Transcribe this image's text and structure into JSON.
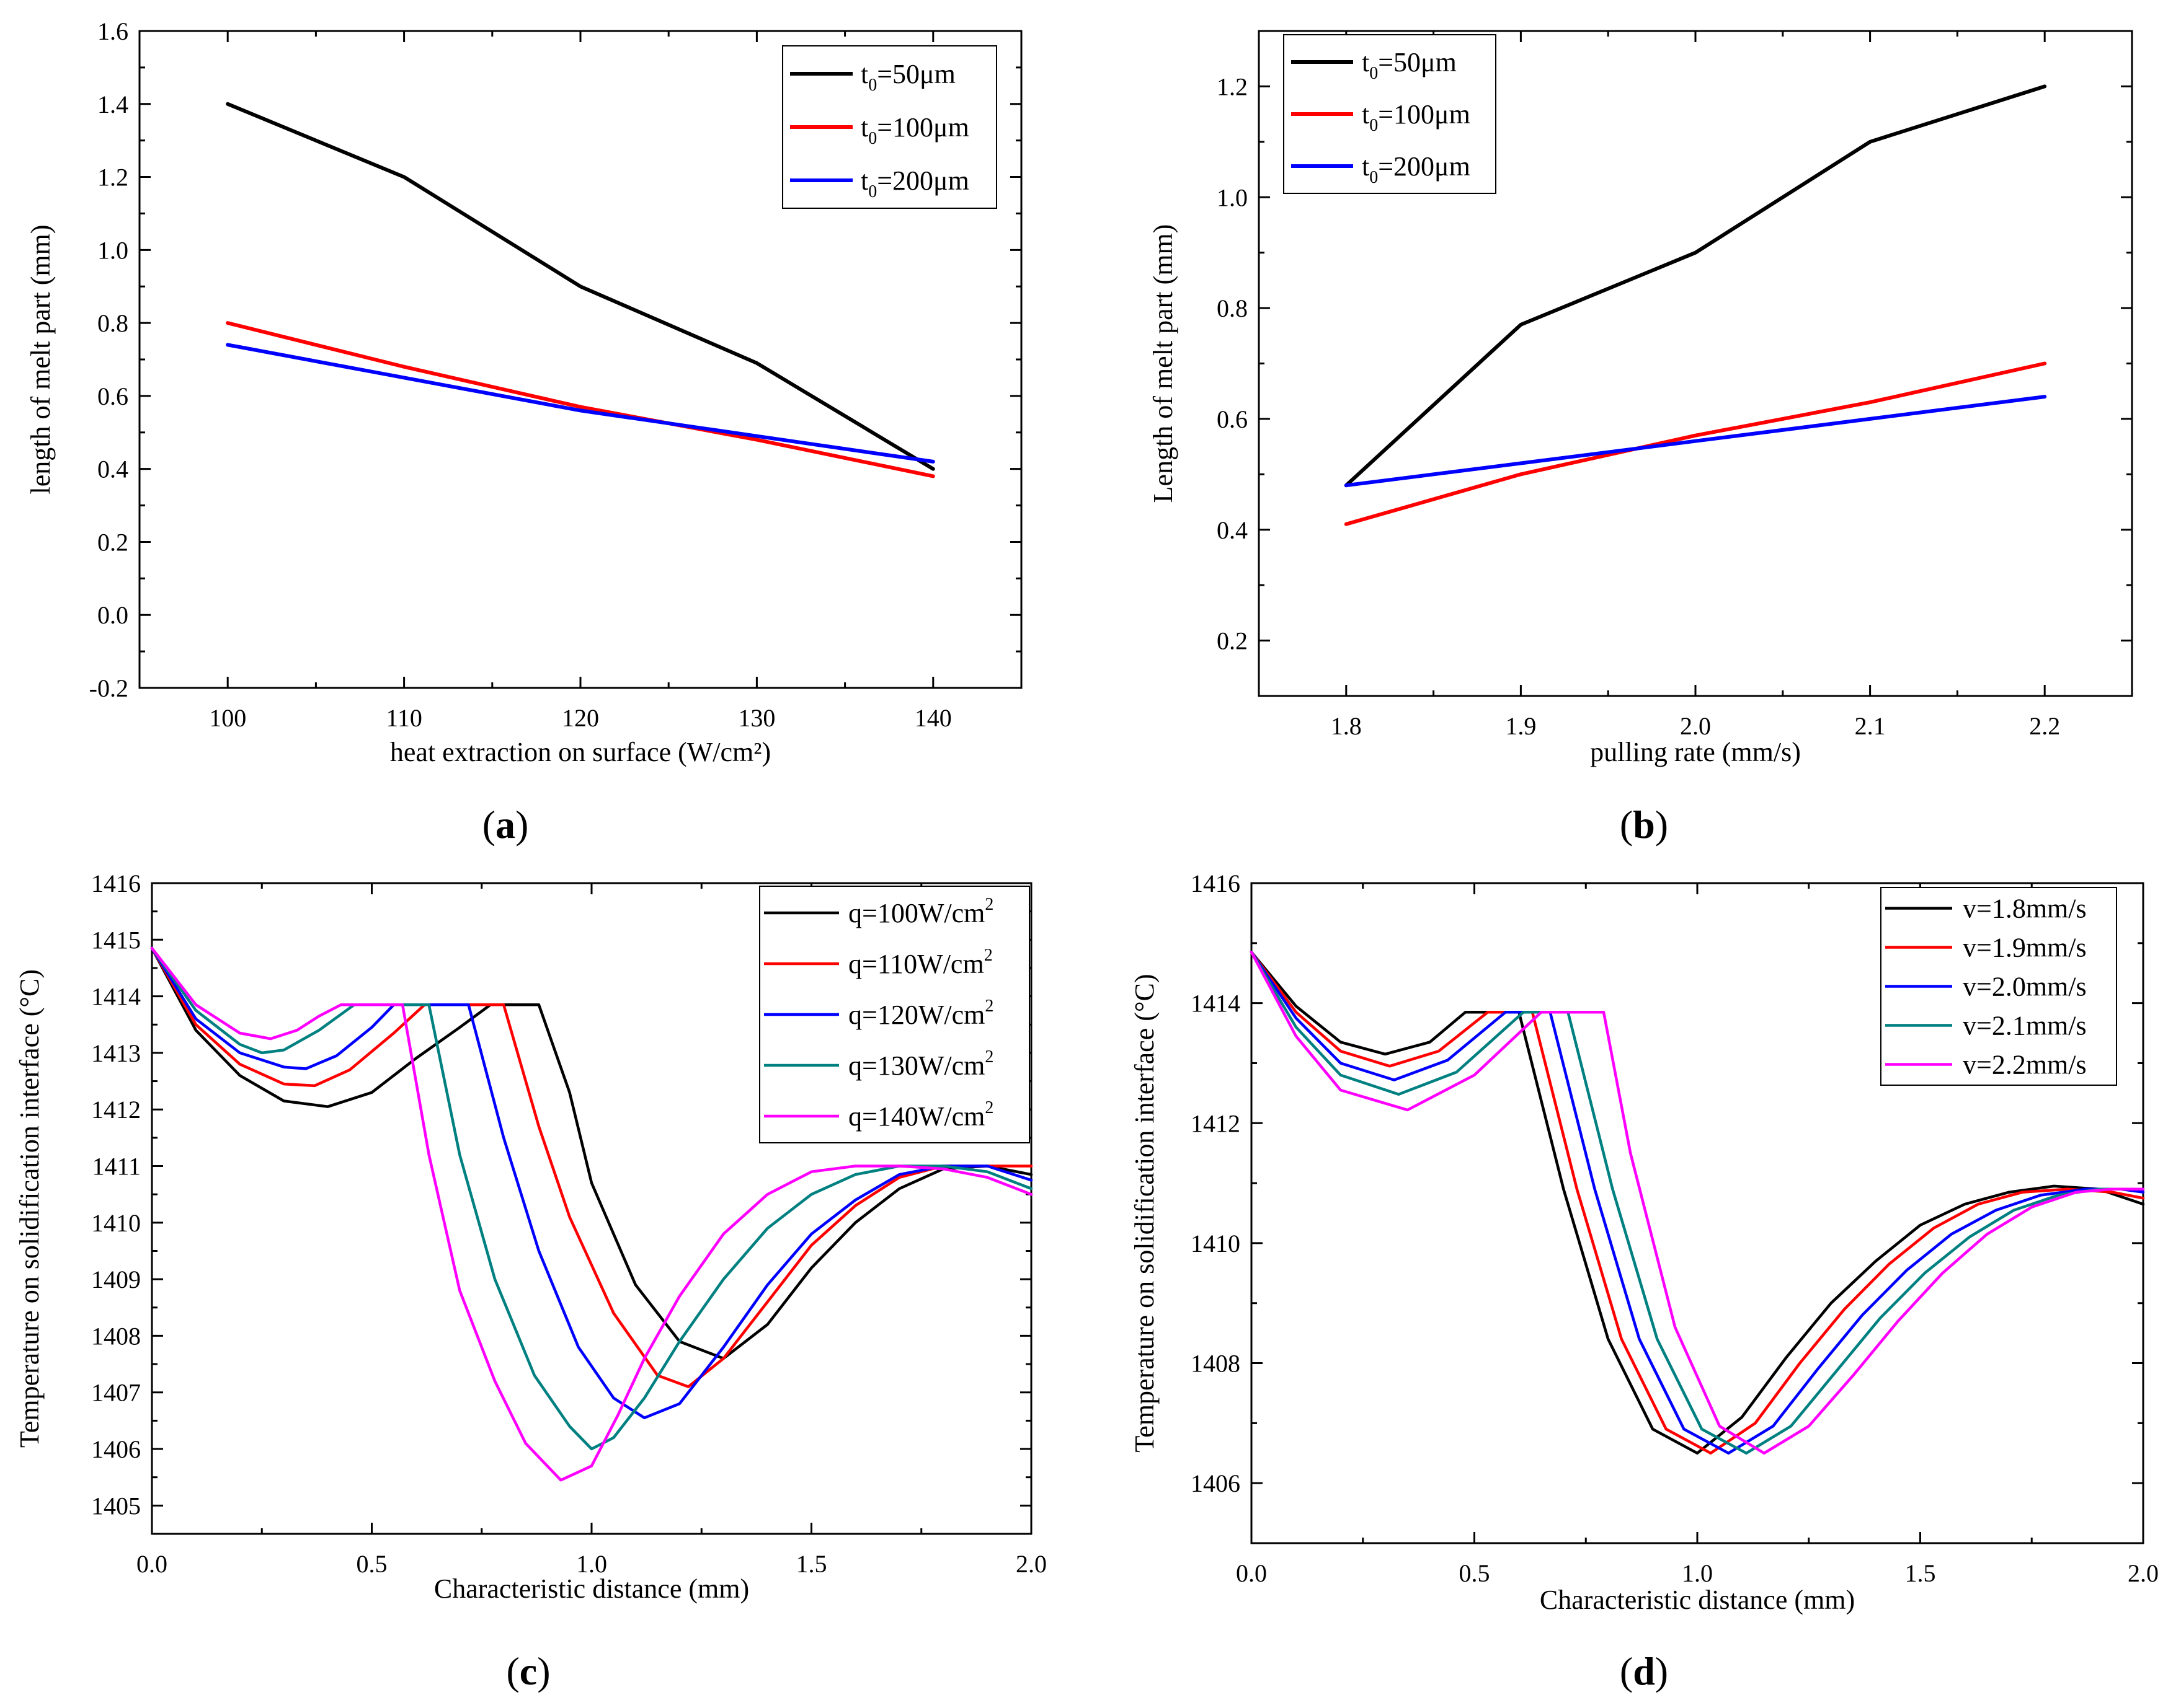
{
  "panels": [
    {
      "open": "(",
      "letter": "a",
      "close": ")"
    },
    {
      "open": "(",
      "letter": "b",
      "close": ")"
    },
    {
      "open": "(",
      "letter": "c",
      "close": ")"
    },
    {
      "open": "(",
      "letter": "d",
      "close": ")"
    }
  ],
  "chart_data": [
    {
      "id": "a",
      "type": "line",
      "xlabel": "heat extraction on surface (W/cm²)",
      "ylabel": "length of melt part (mm)",
      "xlim": [
        95,
        145
      ],
      "ylim": [
        -0.2,
        1.6
      ],
      "xticks": [
        100,
        110,
        120,
        130,
        140
      ],
      "xtick_labels": [
        "100",
        "110",
        "120",
        "130",
        "140"
      ],
      "yticks": [
        -0.2,
        0.0,
        0.2,
        0.4,
        0.6,
        0.8,
        1.0,
        1.2,
        1.4,
        1.6
      ],
      "ytick_labels": [
        "-0.2",
        "0.0",
        "0.2",
        "0.4",
        "0.6",
        "0.8",
        "1.0",
        "1.2",
        "1.4",
        "1.6"
      ],
      "legend_position": "top-right",
      "series": [
        {
          "name": "t0=50μm",
          "label_main": "t",
          "label_sub": "0",
          "label_rest": "=50μm",
          "color": "#000000",
          "x": [
            100,
            110,
            120,
            130,
            140
          ],
          "y": [
            1.4,
            1.2,
            0.9,
            0.69,
            0.4
          ]
        },
        {
          "name": "t0=100μm",
          "label_main": "t",
          "label_sub": "0",
          "label_rest": "=100μm",
          "color": "#ff0000",
          "x": [
            100,
            110,
            120,
            130,
            140
          ],
          "y": [
            0.8,
            0.68,
            0.57,
            0.48,
            0.38
          ]
        },
        {
          "name": "t0=200μm",
          "label_main": "t",
          "label_sub": "0",
          "label_rest": "=200μm",
          "color": "#0000ff",
          "x": [
            100,
            110,
            120,
            130,
            140
          ],
          "y": [
            0.74,
            0.65,
            0.56,
            0.49,
            0.42
          ]
        }
      ]
    },
    {
      "id": "b",
      "type": "line",
      "xlabel": "pulling rate (mm/s)",
      "ylabel": "Length of melt part (mm)",
      "xlim": [
        1.75,
        2.25
      ],
      "ylim": [
        0.1,
        1.3
      ],
      "xticks": [
        1.8,
        1.9,
        2.0,
        2.1,
        2.2
      ],
      "xtick_labels": [
        "1.8",
        "1.9",
        "2.0",
        "2.1",
        "2.2"
      ],
      "yticks": [
        0.2,
        0.4,
        0.6,
        0.8,
        1.0,
        1.2
      ],
      "ytick_labels": [
        "0.2",
        "0.4",
        "0.6",
        "0.8",
        "1.0",
        "1.2"
      ],
      "legend_position": "top-left",
      "series": [
        {
          "name": "t0=50μm",
          "label_main": "t",
          "label_sub": "0",
          "label_rest": "=50μm",
          "color": "#000000",
          "x": [
            1.8,
            1.9,
            2.0,
            2.1,
            2.2
          ],
          "y": [
            0.48,
            0.77,
            0.9,
            1.1,
            1.2
          ]
        },
        {
          "name": "t0=100μm",
          "label_main": "t",
          "label_sub": "0",
          "label_rest": "=100μm",
          "color": "#ff0000",
          "x": [
            1.8,
            1.9,
            2.0,
            2.1,
            2.2
          ],
          "y": [
            0.41,
            0.5,
            0.57,
            0.63,
            0.7
          ]
        },
        {
          "name": "t0=200μm",
          "label_main": "t",
          "label_sub": "0",
          "label_rest": "=200μm",
          "color": "#0000ff",
          "x": [
            1.8,
            1.9,
            2.0,
            2.1,
            2.2
          ],
          "y": [
            0.48,
            0.52,
            0.56,
            0.6,
            0.64
          ]
        }
      ]
    },
    {
      "id": "c",
      "type": "line",
      "xlabel": "Characteristic distance (mm)",
      "ylabel": "Temperature on solidification interface (°C)",
      "xlim": [
        0.0,
        2.0
      ],
      "ylim": [
        1404.5,
        1416
      ],
      "xticks": [
        0.0,
        0.5,
        1.0,
        1.5,
        2.0
      ],
      "xtick_labels": [
        "0.0",
        "0.5",
        "1.0",
        "1.5",
        "2.0"
      ],
      "yticks": [
        1405,
        1406,
        1407,
        1408,
        1409,
        1410,
        1411,
        1412,
        1413,
        1414,
        1415,
        1416
      ],
      "ytick_labels": [
        "1405",
        "1406",
        "1407",
        "1408",
        "1409",
        "1410",
        "1411",
        "1412",
        "1413",
        "1414",
        "1415",
        "1416"
      ],
      "legend_position": "top-right",
      "series": [
        {
          "name": "q=100W/cm2",
          "label_main": "q=100W/cm",
          "label_sup": "2",
          "color": "#000000",
          "x": [
            0,
            0.1,
            0.2,
            0.3,
            0.4,
            0.5,
            0.6,
            0.7,
            0.77,
            0.88,
            0.95,
            1.0,
            1.1,
            1.2,
            1.3,
            1.4,
            1.5,
            1.6,
            1.7,
            1.8,
            1.9,
            2.0
          ],
          "y": [
            1414.85,
            1413.4,
            1412.6,
            1412.15,
            1412.05,
            1412.3,
            1412.9,
            1413.45,
            1413.85,
            1413.85,
            1412.3,
            1410.7,
            1408.9,
            1407.9,
            1407.6,
            1408.2,
            1409.2,
            1410.0,
            1410.6,
            1410.95,
            1411.0,
            1410.85
          ]
        },
        {
          "name": "q=110W/cm2",
          "label_main": "q=110W/cm",
          "label_sup": "2",
          "color": "#ff0000",
          "x": [
            0,
            0.1,
            0.2,
            0.3,
            0.37,
            0.45,
            0.55,
            0.62,
            0.8,
            0.88,
            0.95,
            1.05,
            1.15,
            1.22,
            1.3,
            1.4,
            1.5,
            1.6,
            1.7,
            1.8,
            1.9,
            2.0
          ],
          "y": [
            1414.85,
            1413.5,
            1412.8,
            1412.45,
            1412.42,
            1412.7,
            1413.35,
            1413.85,
            1413.85,
            1411.7,
            1410.1,
            1408.4,
            1407.3,
            1407.1,
            1407.6,
            1408.6,
            1409.6,
            1410.3,
            1410.8,
            1411.0,
            1411.0,
            1411.0
          ]
        },
        {
          "name": "q=120W/cm2",
          "label_main": "q=120W/cm",
          "label_sup": "2",
          "color": "#0000ff",
          "x": [
            0,
            0.1,
            0.2,
            0.3,
            0.35,
            0.42,
            0.5,
            0.55,
            0.72,
            0.8,
            0.88,
            0.97,
            1.05,
            1.12,
            1.2,
            1.3,
            1.4,
            1.5,
            1.6,
            1.7,
            1.8,
            1.9,
            2.0
          ],
          "y": [
            1414.85,
            1413.6,
            1413.0,
            1412.75,
            1412.72,
            1412.95,
            1413.45,
            1413.85,
            1413.85,
            1411.5,
            1409.5,
            1407.8,
            1406.9,
            1406.55,
            1406.8,
            1407.8,
            1408.9,
            1409.8,
            1410.4,
            1410.85,
            1411.0,
            1411.0,
            1410.75
          ]
        },
        {
          "name": "q=130W/cm2",
          "label_main": "q=130W/cm",
          "label_sup": "2",
          "color": "#008080",
          "x": [
            0,
            0.1,
            0.2,
            0.25,
            0.3,
            0.38,
            0.46,
            0.5,
            0.63,
            0.7,
            0.78,
            0.87,
            0.95,
            1.0,
            1.05,
            1.12,
            1.2,
            1.3,
            1.4,
            1.5,
            1.6,
            1.7,
            1.8,
            1.9,
            2.0
          ],
          "y": [
            1414.85,
            1413.75,
            1413.15,
            1413.0,
            1413.05,
            1413.4,
            1413.85,
            1413.85,
            1413.85,
            1411.2,
            1409.0,
            1407.3,
            1406.4,
            1406.0,
            1406.2,
            1406.9,
            1407.9,
            1409.0,
            1409.9,
            1410.5,
            1410.85,
            1411.0,
            1411.0,
            1410.9,
            1410.6
          ]
        },
        {
          "name": "q=140W/cm2",
          "label_main": "q=140W/cm",
          "label_sup": "2",
          "color": "#ff00ff",
          "x": [
            0,
            0.1,
            0.2,
            0.27,
            0.33,
            0.38,
            0.43,
            0.57,
            0.63,
            0.7,
            0.78,
            0.85,
            0.93,
            1.0,
            1.06,
            1.12,
            1.2,
            1.3,
            1.4,
            1.5,
            1.6,
            1.7,
            1.8,
            1.9,
            2.0
          ],
          "y": [
            1414.85,
            1413.85,
            1413.35,
            1413.25,
            1413.4,
            1413.65,
            1413.85,
            1413.85,
            1411.2,
            1408.8,
            1407.2,
            1406.1,
            1405.45,
            1405.7,
            1406.6,
            1407.6,
            1408.7,
            1409.8,
            1410.5,
            1410.9,
            1411.0,
            1411.0,
            1410.95,
            1410.8,
            1410.5
          ]
        }
      ]
    },
    {
      "id": "d",
      "type": "line",
      "xlabel": "Characteristic distance (mm)",
      "ylabel": "Temperature on solidification interface (°C)",
      "xlim": [
        0.0,
        2.0
      ],
      "ylim": [
        1405,
        1416
      ],
      "xticks": [
        0.0,
        0.5,
        1.0,
        1.5,
        2.0
      ],
      "xtick_labels": [
        "0.0",
        "0.5",
        "1.0",
        "1.5",
        "2.0"
      ],
      "yticks": [
        1406,
        1408,
        1410,
        1412,
        1414,
        1416
      ],
      "ytick_labels": [
        "1406",
        "1408",
        "1410",
        "1412",
        "1414",
        "1416"
      ],
      "legend_position": "top-right",
      "series": [
        {
          "name": "v=1.8mm/s",
          "label_main": "v=1.8mm/s",
          "color": "#000000",
          "x": [
            0,
            0.1,
            0.2,
            0.3,
            0.4,
            0.48,
            0.6,
            0.7,
            0.8,
            0.9,
            1.0,
            1.1,
            1.2,
            1.3,
            1.4,
            1.5,
            1.6,
            1.7,
            1.8,
            1.9,
            2.0
          ],
          "y": [
            1414.85,
            1413.95,
            1413.35,
            1413.15,
            1413.35,
            1413.85,
            1413.85,
            1410.9,
            1408.4,
            1406.9,
            1406.5,
            1407.1,
            1408.1,
            1409.0,
            1409.7,
            1410.3,
            1410.65,
            1410.85,
            1410.95,
            1410.9,
            1410.65
          ]
        },
        {
          "name": "v=1.9mm/s",
          "label_main": "v=1.9mm/s",
          "color": "#ff0000",
          "x": [
            0,
            0.1,
            0.2,
            0.31,
            0.42,
            0.53,
            0.63,
            0.73,
            0.83,
            0.93,
            1.03,
            1.13,
            1.23,
            1.33,
            1.43,
            1.53,
            1.63,
            1.73,
            1.83,
            1.93,
            2.0
          ],
          "y": [
            1414.85,
            1413.85,
            1413.2,
            1412.95,
            1413.2,
            1413.85,
            1413.85,
            1410.9,
            1408.4,
            1406.9,
            1406.5,
            1407.0,
            1408.0,
            1408.9,
            1409.65,
            1410.25,
            1410.65,
            1410.85,
            1410.9,
            1410.85,
            1410.75
          ]
        },
        {
          "name": "v=2.0mm/s",
          "label_main": "v=2.0mm/s",
          "color": "#0000ff",
          "x": [
            0,
            0.1,
            0.2,
            0.32,
            0.44,
            0.57,
            0.67,
            0.77,
            0.87,
            0.97,
            1.07,
            1.17,
            1.27,
            1.37,
            1.47,
            1.57,
            1.67,
            1.77,
            1.87,
            1.95,
            2.0
          ],
          "y": [
            1414.85,
            1413.75,
            1413.0,
            1412.72,
            1413.05,
            1413.85,
            1413.85,
            1410.9,
            1408.4,
            1406.9,
            1406.5,
            1406.95,
            1407.9,
            1408.8,
            1409.55,
            1410.15,
            1410.55,
            1410.8,
            1410.9,
            1410.9,
            1410.85
          ]
        },
        {
          "name": "v=2.1mm/s",
          "label_main": "v=2.1mm/s",
          "color": "#008080",
          "x": [
            0,
            0.1,
            0.2,
            0.33,
            0.46,
            0.61,
            0.71,
            0.81,
            0.91,
            1.01,
            1.11,
            1.21,
            1.31,
            1.41,
            1.51,
            1.61,
            1.71,
            1.81,
            1.9,
            2.0
          ],
          "y": [
            1414.85,
            1413.6,
            1412.8,
            1412.48,
            1412.85,
            1413.85,
            1413.85,
            1410.9,
            1408.4,
            1406.9,
            1406.5,
            1406.95,
            1407.85,
            1408.75,
            1409.5,
            1410.1,
            1410.55,
            1410.8,
            1410.9,
            1410.9
          ]
        },
        {
          "name": "v=2.2mm/s",
          "label_main": "v=2.2mm/s",
          "color": "#ff00ff",
          "x": [
            0,
            0.1,
            0.2,
            0.35,
            0.5,
            0.65,
            0.79,
            0.85,
            0.95,
            1.05,
            1.15,
            1.25,
            1.35,
            1.45,
            1.55,
            1.65,
            1.75,
            1.85,
            1.93,
            2.0
          ],
          "y": [
            1414.85,
            1413.45,
            1412.55,
            1412.22,
            1412.8,
            1413.85,
            1413.85,
            1411.5,
            1408.6,
            1406.95,
            1406.5,
            1406.95,
            1407.8,
            1408.7,
            1409.5,
            1410.15,
            1410.6,
            1410.85,
            1410.9,
            1410.9
          ]
        }
      ]
    }
  ]
}
